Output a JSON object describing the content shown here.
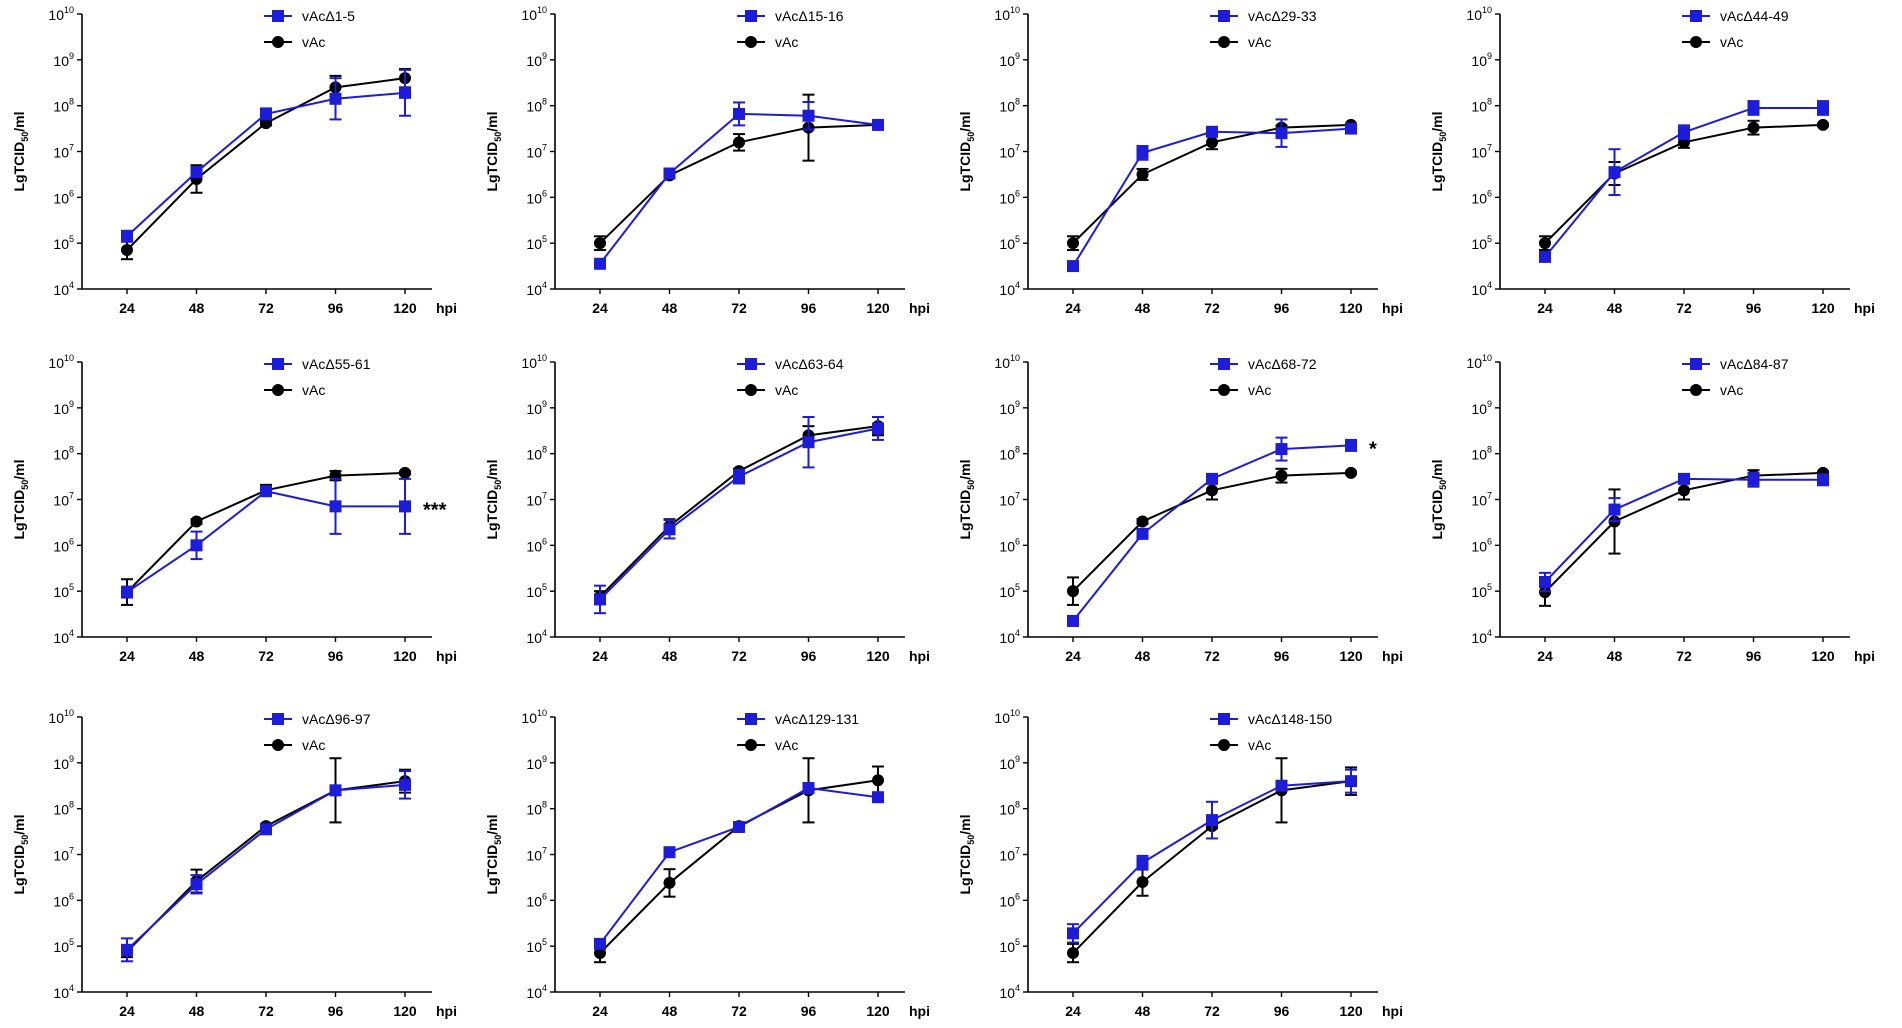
{
  "figure": {
    "x_unit_label": "hpi",
    "y_label_prefix": "LgTCID",
    "y_label_sub": "50",
    "y_label_suffix": "/ml",
    "colors": {
      "mutant": "#1c1cd9",
      "control": "#000000"
    }
  },
  "chart_data": [
    {
      "type": "line",
      "title": "",
      "xlabel": "hpi",
      "ylabel": "LgTCID50/ml",
      "categories": [
        "24",
        "48",
        "72",
        "96",
        "120"
      ],
      "ylim": [
        4,
        10
      ],
      "yscale": "log10",
      "significance": "",
      "series": [
        {
          "name": "vAcΔ1-5",
          "color": "#1c1cd9",
          "marker": "square",
          "values": [
            5.15,
            6.55,
            7.82,
            8.15,
            8.28
          ],
          "err": [
            0.12,
            0.05,
            0.12,
            0.45,
            0.5
          ]
        },
        {
          "name": "vAc",
          "color": "#000000",
          "marker": "circle",
          "values": [
            4.85,
            6.4,
            7.62,
            8.4,
            8.6
          ],
          "err": [
            0.2,
            0.3,
            0.05,
            0.25,
            0.2
          ]
        }
      ]
    },
    {
      "type": "line",
      "title": "",
      "xlabel": "hpi",
      "ylabel": "LgTCID50/ml",
      "categories": [
        "24",
        "48",
        "72",
        "96",
        "120"
      ],
      "ylim": [
        4,
        10
      ],
      "yscale": "log10",
      "significance": "",
      "series": [
        {
          "name": "vAcΔ15-16",
          "color": "#1c1cd9",
          "marker": "square",
          "values": [
            4.55,
            6.52,
            7.82,
            7.78,
            7.58
          ],
          "err": [
            0.1,
            0.05,
            0.25,
            0.3,
            0.03
          ]
        },
        {
          "name": "vAc",
          "color": "#000000",
          "marker": "circle",
          "values": [
            5.0,
            6.48,
            7.2,
            7.52,
            7.58
          ],
          "err": [
            0.15,
            0.05,
            0.18,
            0.72,
            0.03
          ]
        }
      ]
    },
    {
      "type": "line",
      "title": "",
      "xlabel": "hpi",
      "ylabel": "LgTCID50/ml",
      "categories": [
        "24",
        "48",
        "72",
        "96",
        "120"
      ],
      "ylim": [
        4,
        10
      ],
      "yscale": "log10",
      "significance": "",
      "series": [
        {
          "name": "vAcΔ29-33",
          "color": "#1c1cd9",
          "marker": "square",
          "values": [
            4.5,
            6.97,
            7.43,
            7.4,
            7.5
          ],
          "err": [
            0.1,
            0.15,
            0.05,
            0.3,
            0.05
          ]
        },
        {
          "name": "vAc",
          "color": "#000000",
          "marker": "circle",
          "values": [
            5.0,
            6.5,
            7.2,
            7.52,
            7.58
          ],
          "err": [
            0.15,
            0.12,
            0.15,
            0.05,
            0.03
          ]
        }
      ]
    },
    {
      "type": "line",
      "title": "",
      "xlabel": "hpi",
      "ylabel": "LgTCID50/ml",
      "categories": [
        "24",
        "48",
        "72",
        "96",
        "120"
      ],
      "ylim": [
        4,
        10
      ],
      "yscale": "log10",
      "significance": "",
      "series": [
        {
          "name": "vAcΔ44-49",
          "color": "#1c1cd9",
          "marker": "square",
          "values": [
            4.7,
            6.55,
            7.42,
            7.95,
            7.95
          ],
          "err": [
            0.05,
            0.5,
            0.15,
            0.15,
            0.15
          ]
        },
        {
          "name": "vAc",
          "color": "#000000",
          "marker": "circle",
          "values": [
            5.0,
            6.52,
            7.2,
            7.52,
            7.58
          ],
          "err": [
            0.15,
            0.25,
            0.12,
            0.15,
            0.03
          ]
        }
      ]
    },
    {
      "type": "line",
      "title": "",
      "xlabel": "hpi",
      "ylabel": "LgTCID50/ml",
      "categories": [
        "24",
        "48",
        "72",
        "96",
        "120"
      ],
      "ylim": [
        4,
        10
      ],
      "yscale": "log10",
      "significance": "***",
      "series": [
        {
          "name": "vAcΔ55-61",
          "color": "#1c1cd9",
          "marker": "square",
          "values": [
            4.98,
            6.0,
            7.18,
            6.85,
            6.85
          ],
          "err": [
            0.12,
            0.3,
            0.08,
            0.6,
            0.6
          ]
        },
        {
          "name": "vAc",
          "color": "#000000",
          "marker": "circle",
          "values": [
            4.98,
            6.52,
            7.2,
            7.52,
            7.58
          ],
          "err": [
            0.28,
            0.05,
            0.12,
            0.1,
            0.03
          ]
        }
      ]
    },
    {
      "type": "line",
      "title": "",
      "xlabel": "hpi",
      "ylabel": "LgTCID50/ml",
      "categories": [
        "24",
        "48",
        "72",
        "96",
        "120"
      ],
      "ylim": [
        4,
        10
      ],
      "yscale": "log10",
      "significance": "",
      "series": [
        {
          "name": "vAcΔ63-64",
          "color": "#1c1cd9",
          "marker": "square",
          "values": [
            4.82,
            6.35,
            7.5,
            8.25,
            8.55
          ],
          "err": [
            0.3,
            0.2,
            0.15,
            0.55,
            0.25
          ]
        },
        {
          "name": "vAc",
          "color": "#000000",
          "marker": "circle",
          "values": [
            4.88,
            6.42,
            7.62,
            8.4,
            8.6
          ],
          "err": [
            0.12,
            0.15,
            0.05,
            0.2,
            0.2
          ]
        }
      ]
    },
    {
      "type": "line",
      "title": "",
      "xlabel": "hpi",
      "ylabel": "LgTCID50/ml",
      "categories": [
        "24",
        "48",
        "72",
        "96",
        "120"
      ],
      "ylim": [
        4,
        10
      ],
      "yscale": "log10",
      "significance": "*",
      "series": [
        {
          "name": "vAcΔ68-72",
          "color": "#1c1cd9",
          "marker": "square",
          "values": [
            4.35,
            6.25,
            7.45,
            8.1,
            8.18
          ],
          "err": [
            0.05,
            0.05,
            0.1,
            0.25,
            0.12
          ]
        },
        {
          "name": "vAc",
          "color": "#000000",
          "marker": "circle",
          "values": [
            5.0,
            6.52,
            7.2,
            7.52,
            7.58
          ],
          "err": [
            0.3,
            0.05,
            0.2,
            0.15,
            0.03
          ]
        }
      ]
    },
    {
      "type": "line",
      "title": "",
      "xlabel": "hpi",
      "ylabel": "LgTCID50/ml",
      "categories": [
        "24",
        "48",
        "72",
        "96",
        "120"
      ],
      "ylim": [
        4,
        10
      ],
      "yscale": "log10",
      "significance": "",
      "series": [
        {
          "name": "vAcΔ84-87",
          "color": "#1c1cd9",
          "marker": "square",
          "values": [
            5.2,
            6.78,
            7.45,
            7.43,
            7.43
          ],
          "err": [
            0.2,
            0.25,
            0.08,
            0.15,
            0.12
          ]
        },
        {
          "name": "vAc",
          "color": "#000000",
          "marker": "circle",
          "values": [
            4.98,
            6.52,
            7.2,
            7.52,
            7.58
          ],
          "err": [
            0.3,
            0.7,
            0.2,
            0.12,
            0.03
          ]
        }
      ]
    },
    {
      "type": "line",
      "title": "",
      "xlabel": "hpi",
      "ylabel": "LgTCID50/ml",
      "categories": [
        "24",
        "48",
        "72",
        "96",
        "120"
      ],
      "ylim": [
        4,
        10
      ],
      "yscale": "log10",
      "significance": "",
      "series": [
        {
          "name": "vAcΔ96-97",
          "color": "#1c1cd9",
          "marker": "square",
          "values": [
            4.92,
            6.35,
            7.55,
            8.4,
            8.52
          ],
          "err": [
            0.25,
            0.2,
            0.05,
            0.08,
            0.3
          ]
        },
        {
          "name": "vAc",
          "color": "#000000",
          "marker": "circle",
          "values": [
            4.88,
            6.42,
            7.62,
            8.4,
            8.6
          ],
          "err": [
            0.12,
            0.25,
            0.05,
            0.7,
            0.25
          ]
        }
      ]
    },
    {
      "type": "line",
      "title": "",
      "xlabel": "hpi",
      "ylabel": "LgTCID50/ml",
      "categories": [
        "24",
        "48",
        "72",
        "96",
        "120"
      ],
      "ylim": [
        4,
        10
      ],
      "yscale": "log10",
      "significance": "",
      "series": [
        {
          "name": "vAcΔ129-131",
          "color": "#1c1cd9",
          "marker": "square",
          "values": [
            5.05,
            7.05,
            7.6,
            8.45,
            8.25
          ],
          "err": [
            0.05,
            0.1,
            0.08,
            0.1,
            0.1
          ]
        },
        {
          "name": "vAc",
          "color": "#000000",
          "marker": "circle",
          "values": [
            4.85,
            6.38,
            7.62,
            8.4,
            8.62
          ],
          "err": [
            0.2,
            0.3,
            0.05,
            0.7,
            0.3
          ]
        }
      ]
    },
    {
      "type": "line",
      "title": "",
      "xlabel": "hpi",
      "ylabel": "LgTCID50/ml",
      "categories": [
        "24",
        "48",
        "72",
        "96",
        "120"
      ],
      "ylim": [
        4,
        10
      ],
      "yscale": "log10",
      "significance": "",
      "series": [
        {
          "name": "vAcΔ148-150",
          "color": "#1c1cd9",
          "marker": "square",
          "values": [
            5.28,
            6.82,
            7.75,
            8.5,
            8.6
          ],
          "err": [
            0.2,
            0.15,
            0.4,
            0.08,
            0.25
          ]
        },
        {
          "name": "vAc",
          "color": "#000000",
          "marker": "circle",
          "values": [
            4.85,
            6.4,
            7.62,
            8.4,
            8.6
          ],
          "err": [
            0.2,
            0.3,
            0.05,
            0.7,
            0.3
          ]
        }
      ]
    }
  ]
}
